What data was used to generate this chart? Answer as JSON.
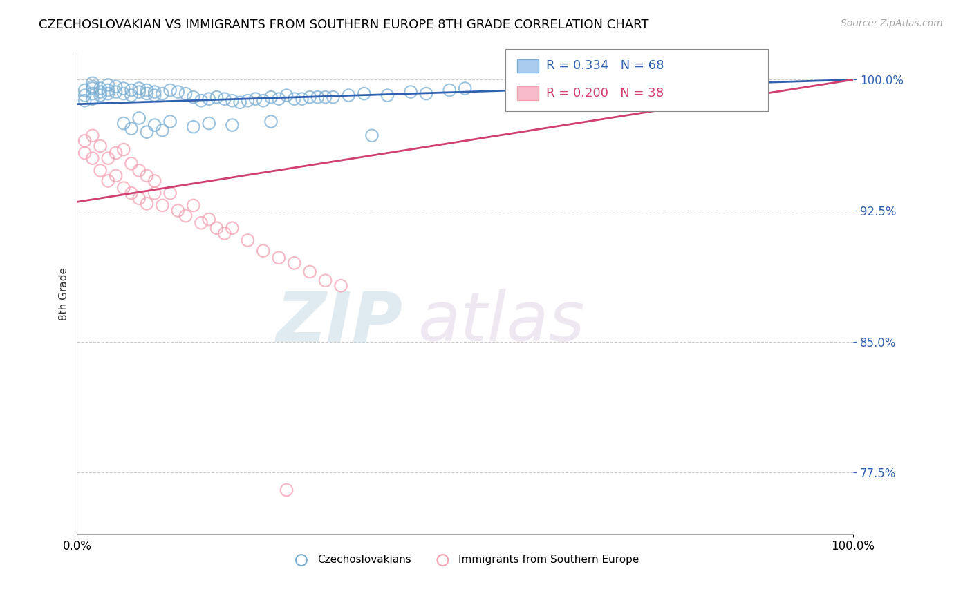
{
  "title": "CZECHOSLOVAKIAN VS IMMIGRANTS FROM SOUTHERN EUROPE 8TH GRADE CORRELATION CHART",
  "source": "Source: ZipAtlas.com",
  "ylabel": "8th Grade",
  "xlim": [
    0.0,
    100.0
  ],
  "ylim": [
    74.0,
    101.5
  ],
  "yticks": [
    77.5,
    85.0,
    92.5,
    100.0
  ],
  "ytick_labels": [
    "77.5%",
    "85.0%",
    "92.5%",
    "100.0%"
  ],
  "xticks": [
    0.0,
    100.0
  ],
  "xtick_labels": [
    "0.0%",
    "100.0%"
  ],
  "blue_R": 0.334,
  "blue_N": 68,
  "pink_R": 0.2,
  "pink_N": 38,
  "blue_color": "#7bafd4",
  "pink_color": "#f4a0b0",
  "trend_blue": "#3060b0",
  "trend_pink": "#d04070",
  "legend_label_blue": "Czechoslovakians",
  "legend_label_pink": "Immigrants from Southern Europe",
  "blue_trend_start": 98.6,
  "blue_trend_end": 100.0,
  "pink_trend_start": 93.0,
  "pink_trend_end": 100.0,
  "blue_scatter_x": [
    1,
    1,
    1,
    2,
    2,
    2,
    2,
    2,
    3,
    3,
    3,
    4,
    4,
    4,
    5,
    5,
    6,
    6,
    7,
    7,
    8,
    8,
    9,
    9,
    10,
    10,
    11,
    12,
    13,
    14,
    15,
    16,
    17,
    18,
    19,
    20,
    21,
    22,
    23,
    24,
    25,
    26,
    27,
    28,
    29,
    30,
    31,
    32,
    33,
    35,
    37,
    40,
    43,
    45,
    48,
    50,
    38,
    6,
    7,
    8,
    9,
    10,
    11,
    12,
    15,
    17,
    20,
    25
  ],
  "blue_scatter_y": [
    99.4,
    99.1,
    98.8,
    99.5,
    99.2,
    98.9,
    99.8,
    99.6,
    99.5,
    99.3,
    99.1,
    99.7,
    99.4,
    99.2,
    99.6,
    99.3,
    99.5,
    99.2,
    99.4,
    99.1,
    99.3,
    99.5,
    99.4,
    99.2,
    99.3,
    99.1,
    99.2,
    99.4,
    99.3,
    99.2,
    99.0,
    98.8,
    98.9,
    99.0,
    98.9,
    98.8,
    98.7,
    98.8,
    98.9,
    98.8,
    99.0,
    98.9,
    99.1,
    98.9,
    98.9,
    99.0,
    99.0,
    99.0,
    99.0,
    99.1,
    99.2,
    99.1,
    99.3,
    99.2,
    99.4,
    99.5,
    96.8,
    97.5,
    97.2,
    97.8,
    97.0,
    97.4,
    97.1,
    97.6,
    97.3,
    97.5,
    97.4,
    97.6
  ],
  "pink_scatter_x": [
    1,
    1,
    2,
    2,
    3,
    3,
    4,
    4,
    5,
    5,
    6,
    6,
    7,
    7,
    8,
    8,
    9,
    9,
    10,
    10,
    11,
    12,
    13,
    14,
    15,
    16,
    17,
    18,
    19,
    20,
    22,
    24,
    26,
    28,
    30,
    32,
    34,
    27
  ],
  "pink_scatter_y": [
    96.5,
    95.8,
    96.8,
    95.5,
    96.2,
    94.8,
    95.5,
    94.2,
    95.8,
    94.5,
    96.0,
    93.8,
    95.2,
    93.5,
    94.8,
    93.2,
    94.5,
    92.9,
    94.2,
    93.5,
    92.8,
    93.5,
    92.5,
    92.2,
    92.8,
    91.8,
    92.0,
    91.5,
    91.2,
    91.5,
    90.8,
    90.2,
    89.8,
    89.5,
    89.0,
    88.5,
    88.2,
    76.5
  ]
}
